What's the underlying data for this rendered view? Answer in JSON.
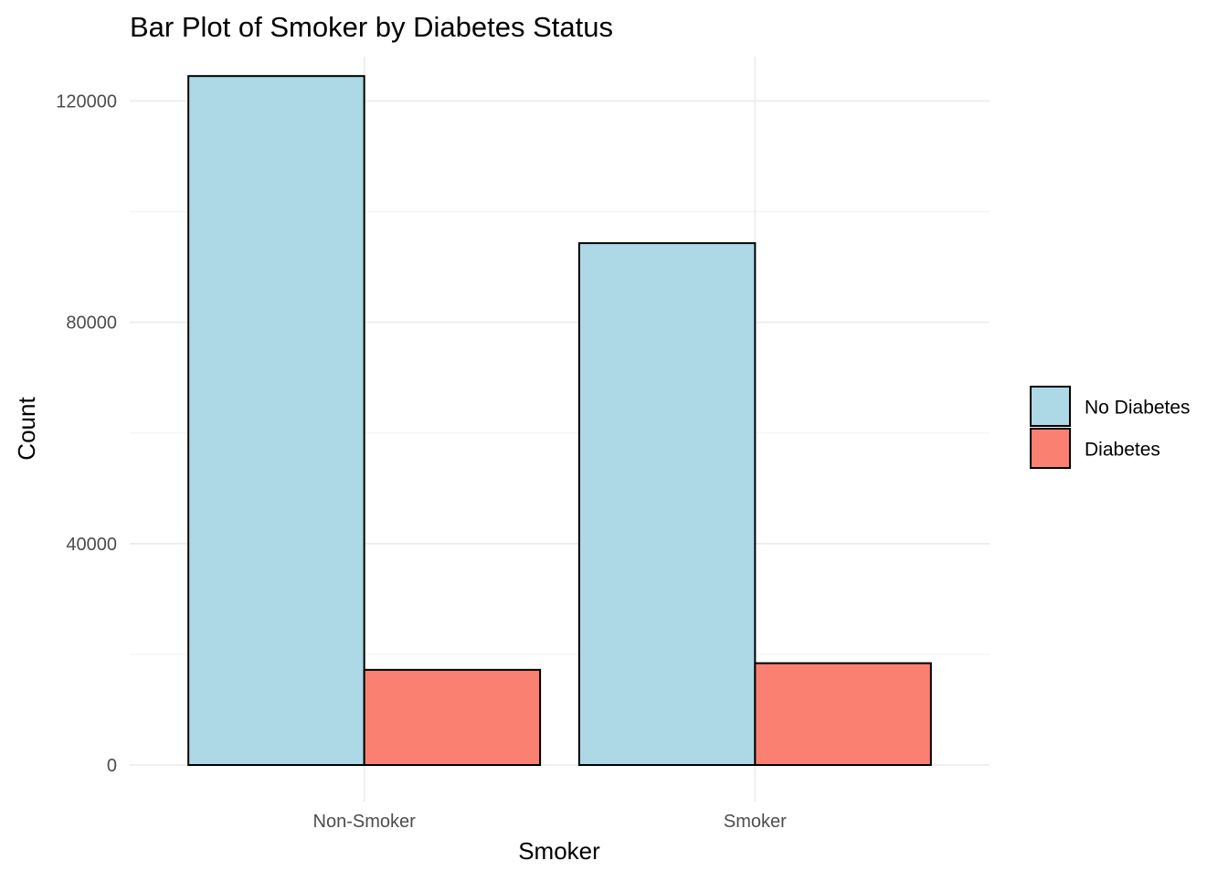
{
  "chart_data": {
    "type": "bar",
    "title": "Bar Plot of Smoker by Diabetes Status",
    "xlabel": "Smoker",
    "ylabel": "Count",
    "categories": [
      "Non-Smoker",
      "Smoker"
    ],
    "series": [
      {
        "name": "No Diabetes",
        "color": "#ADD8E6",
        "values": [
          124500,
          94300
        ]
      },
      {
        "name": "Diabetes",
        "color": "#FA8072",
        "values": [
          17200,
          18400
        ]
      }
    ],
    "ylim": [
      0,
      128000
    ],
    "yticks": [
      0,
      40000,
      80000,
      120000
    ],
    "ytick_labels": [
      "0",
      "40000",
      "80000",
      "120000"
    ],
    "grid": true,
    "legend_placement": "right"
  }
}
